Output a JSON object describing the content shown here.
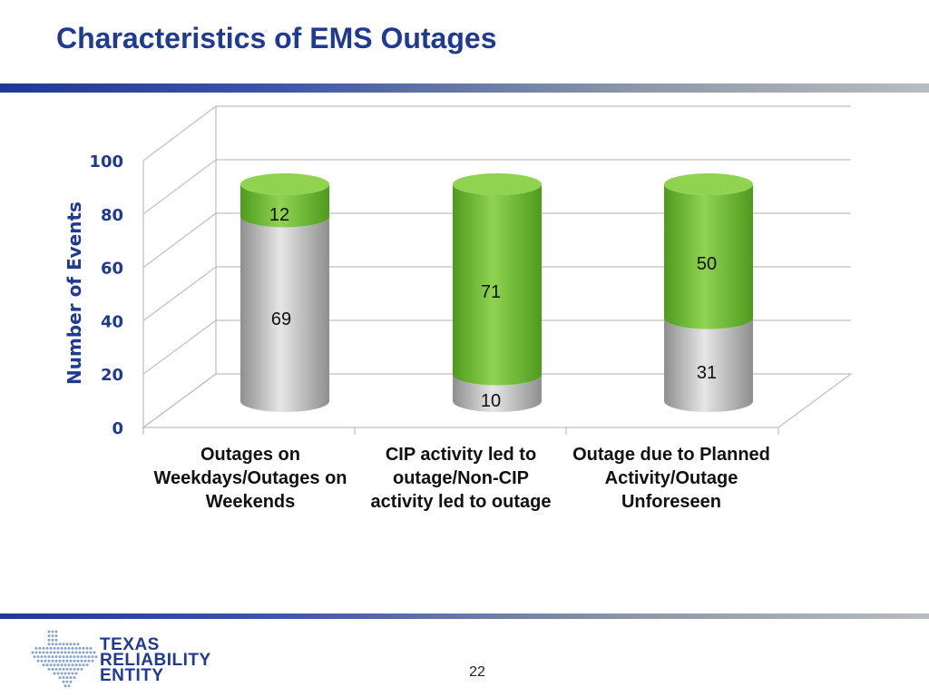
{
  "slide": {
    "title": "Characteristics of EMS Outages",
    "page_number": "22",
    "logo": {
      "line1": "TEXAS",
      "line2": "RELIABILITY",
      "line3": "ENTITY"
    }
  },
  "colors": {
    "title": "#1f3a93",
    "green": "#7dc242",
    "gray": "#bdbdbd"
  },
  "chart_data": {
    "type": "bar",
    "stacked": true,
    "ylabel": "Number of Events",
    "ylim": [
      0,
      100
    ],
    "yticks": [
      0,
      20,
      40,
      60,
      80,
      100
    ],
    "grid": true,
    "categories": [
      "Outages on Weekdays/Outages on Weekends",
      "CIP activity led to outage/Non-CIP activity led to outage",
      "Outage due to Planned Activity/Outage Unforeseen"
    ],
    "series": [
      {
        "values": [
          69,
          10,
          31
        ],
        "color": "#bdbdbd"
      },
      {
        "values": [
          12,
          71,
          50
        ],
        "color": "#7dc242"
      }
    ]
  }
}
